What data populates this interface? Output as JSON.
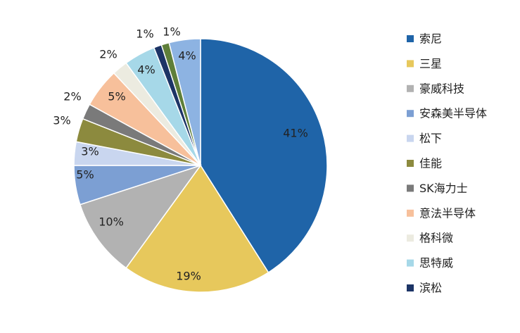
{
  "chart_data": {
    "type": "pie",
    "title": "",
    "legend_position": "right",
    "slices": [
      {
        "name": "索尼",
        "value": 41,
        "label": "41%",
        "color": "#1f64a8"
      },
      {
        "name": "三星",
        "value": 19,
        "label": "19%",
        "color": "#e7c85c"
      },
      {
        "name": "豪威科技",
        "value": 10,
        "label": "10%",
        "color": "#b2b2b2"
      },
      {
        "name": "安森美半导体",
        "value": 5,
        "label": "5%",
        "color": "#7c9fd3"
      },
      {
        "name": "松下",
        "value": 3,
        "label": "3%",
        "color": "#c9d6ef"
      },
      {
        "name": "佳能",
        "value": 3,
        "label": "3%",
        "color": "#8c8a3e"
      },
      {
        "name": "SK海力士",
        "value": 2,
        "label": "2%",
        "color": "#7a7a7a"
      },
      {
        "name": "意法半导体",
        "value": 5,
        "label": "5%",
        "color": "#f7c09b"
      },
      {
        "name": "格科微",
        "value": 2,
        "label": "2%",
        "color": "#ecebe0"
      },
      {
        "name": "思特威",
        "value": 4,
        "label": "4%",
        "color": "#a6d8e8"
      },
      {
        "name": "滨松",
        "value": 1,
        "label": "1%",
        "color": "#1c3466"
      },
      {
        "name": "",
        "value": 1,
        "label": "1%",
        "color": "#5f7f3a"
      },
      {
        "name": "",
        "value": 4,
        "label": "4%",
        "color": "#8db3e2"
      }
    ]
  }
}
